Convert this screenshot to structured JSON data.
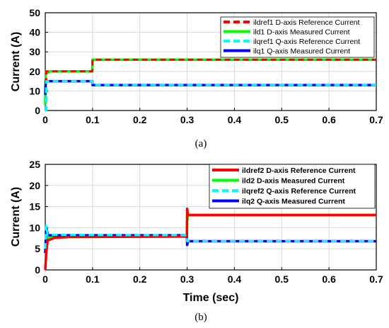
{
  "chart_data": [
    {
      "type": "line",
      "caption": "(a)",
      "xlabel": "",
      "ylabel": "Current (A)",
      "xlim": [
        0,
        0.7
      ],
      "ylim": [
        0,
        50
      ],
      "xticks": [
        0,
        0.1,
        0.2,
        0.3,
        0.4,
        0.5,
        0.6,
        0.7
      ],
      "yticks": [
        0,
        10,
        20,
        30,
        40,
        50
      ],
      "grid": true,
      "legend_position": "top-right",
      "series": [
        {
          "name": "ildref1 D-axis Reference Current",
          "color": "#ff0000",
          "style": "dashed",
          "x": [
            0,
            0.002,
            0.002,
            0.0995,
            0.1,
            0.7
          ],
          "y": [
            0,
            0,
            20,
            20,
            26,
            26
          ]
        },
        {
          "name": "ild1 D-axis Measured Current",
          "color": "#00ff00",
          "style": "solid",
          "x": [
            0,
            0.001,
            0.003,
            0.006,
            0.01,
            0.0995,
            0.1,
            0.7
          ],
          "y": [
            3,
            20,
            19,
            19.5,
            20,
            20,
            26,
            26
          ]
        },
        {
          "name": "ilqref1 Q-axis Reference Current",
          "color": "#00ffff",
          "style": "dashed",
          "x": [
            0,
            0.002,
            0.002,
            0.0995,
            0.1,
            0.7
          ],
          "y": [
            0,
            0,
            15,
            15,
            13,
            13
          ]
        },
        {
          "name": "ilq1 Q-axis Measured Current",
          "color": "#0000ff",
          "style": "solid",
          "x": [
            0,
            0.001,
            0.004,
            0.01,
            0.0995,
            0.1,
            0.7
          ],
          "y": [
            8,
            15,
            15,
            15,
            15,
            13,
            13
          ]
        }
      ]
    },
    {
      "type": "line",
      "caption": "(b)",
      "xlabel": "Time (sec)",
      "ylabel": "Current (A)",
      "xlim": [
        0,
        0.7
      ],
      "ylim": [
        0,
        25
      ],
      "xticks": [
        0,
        0.1,
        0.2,
        0.3,
        0.4,
        0.5,
        0.6,
        0.7
      ],
      "yticks": [
        0,
        5,
        10,
        15,
        20,
        25
      ],
      "grid": true,
      "legend_position": "top-right",
      "series": [
        {
          "name": "ildref2 D-axis Reference Current",
          "color": "#ff0000",
          "style": "solid",
          "x": [
            0,
            0.002,
            0.005,
            0.02,
            0.05,
            0.2995,
            0.3,
            0.302,
            0.31,
            0.7
          ],
          "y": [
            0,
            4,
            7,
            7.6,
            7.8,
            7.9,
            14.5,
            13,
            13,
            13
          ]
        },
        {
          "name": "ild2 D-axis Measured Current",
          "color": "#00ff00",
          "style": "solid",
          "x": [
            0,
            0.002,
            0.005,
            0.02,
            0.05,
            0.2995,
            0.3,
            0.302,
            0.31,
            0.7
          ],
          "y": [
            4,
            7,
            7.5,
            7.7,
            7.8,
            7.9,
            11.5,
            13,
            13,
            13
          ]
        },
        {
          "name": "ilqref2 Q-axis Reference Current",
          "color": "#00ffff",
          "style": "dashed",
          "x": [
            0,
            0.002,
            0.005,
            0.2995,
            0.3,
            0.7
          ],
          "y": [
            5,
            10.5,
            8.3,
            8.2,
            6.8,
            6.8
          ]
        },
        {
          "name": "ilq2 Q-axis Measured Current",
          "color": "#0000ff",
          "style": "solid",
          "x": [
            0,
            0.002,
            0.006,
            0.2995,
            0.3,
            0.302,
            0.7
          ],
          "y": [
            4,
            10,
            8.2,
            8.2,
            5.9,
            6.8,
            6.8
          ]
        }
      ]
    }
  ]
}
